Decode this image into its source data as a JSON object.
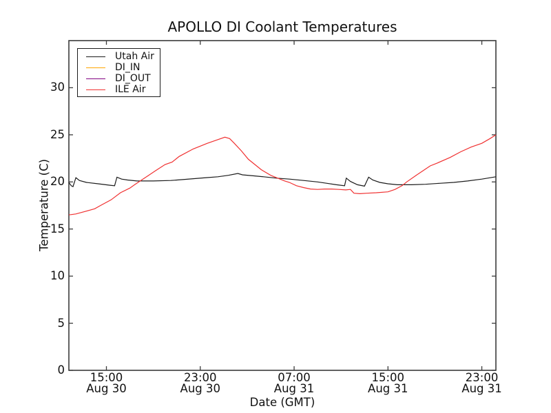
{
  "chart_data": {
    "type": "line",
    "title": "APOLLO DI Coolant Temperatures",
    "xlabel": "Date (GMT)",
    "ylabel": "Temperature (C)",
    "x_unit": "hours since Aug 30 00:00 GMT",
    "xlim": [
      11.8,
      48.2
    ],
    "ylim": [
      0,
      35
    ],
    "grid": false,
    "legend_position": "upper left",
    "yticks": [
      0,
      5,
      10,
      15,
      20,
      25,
      30
    ],
    "xticks": [
      {
        "t": 15,
        "line1": "15:00",
        "line2": "Aug 30"
      },
      {
        "t": 23,
        "line1": "23:00",
        "line2": "Aug 30"
      },
      {
        "t": 31,
        "line1": "07:00",
        "line2": "Aug 31"
      },
      {
        "t": 39,
        "line1": "15:00",
        "line2": "Aug 31"
      },
      {
        "t": 47,
        "line1": "23:00",
        "line2": "Aug 31"
      }
    ],
    "series": [
      {
        "id": "utah-air",
        "name": "Utah Air",
        "color": "#1a1a1a",
        "points": [
          [
            11.8,
            19.95
          ],
          [
            12.0,
            19.6
          ],
          [
            12.15,
            19.5
          ],
          [
            12.4,
            20.45
          ],
          [
            12.7,
            20.15
          ],
          [
            13.3,
            19.95
          ],
          [
            14.3,
            19.8
          ],
          [
            15.3,
            19.65
          ],
          [
            15.7,
            19.6
          ],
          [
            15.9,
            20.5
          ],
          [
            16.3,
            20.3
          ],
          [
            16.8,
            20.2
          ],
          [
            17.6,
            20.1
          ],
          [
            19.0,
            20.1
          ],
          [
            20.5,
            20.15
          ],
          [
            21.5,
            20.25
          ],
          [
            22.5,
            20.35
          ],
          [
            23.5,
            20.45
          ],
          [
            24.5,
            20.55
          ],
          [
            25.4,
            20.7
          ],
          [
            26.2,
            20.9
          ],
          [
            26.6,
            20.75
          ],
          [
            27.5,
            20.65
          ],
          [
            28.4,
            20.55
          ],
          [
            29.5,
            20.4
          ],
          [
            30.6,
            20.3
          ],
          [
            31.8,
            20.15
          ],
          [
            33.0,
            20.0
          ],
          [
            33.8,
            19.85
          ],
          [
            34.6,
            19.7
          ],
          [
            35.3,
            19.6
          ],
          [
            35.45,
            20.4
          ],
          [
            35.8,
            20.05
          ],
          [
            36.4,
            19.7
          ],
          [
            37.0,
            19.55
          ],
          [
            37.35,
            20.5
          ],
          [
            37.7,
            20.2
          ],
          [
            38.3,
            19.95
          ],
          [
            39.0,
            19.8
          ],
          [
            39.8,
            19.7
          ],
          [
            41.0,
            19.7
          ],
          [
            42.2,
            19.75
          ],
          [
            43.4,
            19.85
          ],
          [
            44.6,
            19.95
          ],
          [
            45.8,
            20.1
          ],
          [
            47.0,
            20.3
          ],
          [
            48.2,
            20.55
          ]
        ]
      },
      {
        "id": "di-in",
        "name": "DI_IN",
        "color": "#ffa500",
        "points": []
      },
      {
        "id": "di-out",
        "name": "DI_OUT",
        "color": "#800080",
        "points": []
      },
      {
        "id": "ile-air",
        "name": "ILE Air",
        "color": "#f03030",
        "points": [
          [
            11.8,
            16.5
          ],
          [
            12.4,
            16.6
          ],
          [
            13.0,
            16.8
          ],
          [
            14.0,
            17.15
          ],
          [
            14.5,
            17.5
          ],
          [
            15.4,
            18.1
          ],
          [
            16.2,
            18.85
          ],
          [
            17.0,
            19.35
          ],
          [
            17.4,
            19.7
          ],
          [
            18.0,
            20.2
          ],
          [
            18.6,
            20.7
          ],
          [
            19.2,
            21.2
          ],
          [
            20.0,
            21.85
          ],
          [
            20.6,
            22.1
          ],
          [
            21.2,
            22.7
          ],
          [
            22.4,
            23.5
          ],
          [
            23.2,
            23.9
          ],
          [
            23.6,
            24.1
          ],
          [
            24.4,
            24.45
          ],
          [
            25.1,
            24.75
          ],
          [
            25.5,
            24.6
          ],
          [
            25.9,
            24.1
          ],
          [
            26.5,
            23.3
          ],
          [
            27.1,
            22.4
          ],
          [
            28.2,
            21.3
          ],
          [
            29.0,
            20.7
          ],
          [
            29.6,
            20.4
          ],
          [
            30.2,
            20.1
          ],
          [
            30.6,
            19.95
          ],
          [
            31.2,
            19.6
          ],
          [
            31.8,
            19.4
          ],
          [
            32.4,
            19.25
          ],
          [
            33.0,
            19.2
          ],
          [
            33.6,
            19.25
          ],
          [
            34.2,
            19.25
          ],
          [
            34.8,
            19.2
          ],
          [
            35.4,
            19.15
          ],
          [
            35.8,
            19.2
          ],
          [
            36.1,
            18.8
          ],
          [
            36.6,
            18.75
          ],
          [
            37.2,
            18.8
          ],
          [
            38.0,
            18.85
          ],
          [
            39.0,
            18.95
          ],
          [
            39.6,
            19.2
          ],
          [
            40.2,
            19.6
          ],
          [
            40.6,
            20.0
          ],
          [
            41.4,
            20.7
          ],
          [
            42.0,
            21.2
          ],
          [
            42.6,
            21.7
          ],
          [
            43.2,
            22.0
          ],
          [
            44.3,
            22.6
          ],
          [
            45.2,
            23.2
          ],
          [
            46.1,
            23.7
          ],
          [
            47.0,
            24.1
          ],
          [
            47.7,
            24.6
          ],
          [
            48.2,
            25.0
          ]
        ]
      }
    ]
  },
  "colors": {
    "background": "#ffffff",
    "spine": "#3a3a3a",
    "text": "#111111"
  }
}
